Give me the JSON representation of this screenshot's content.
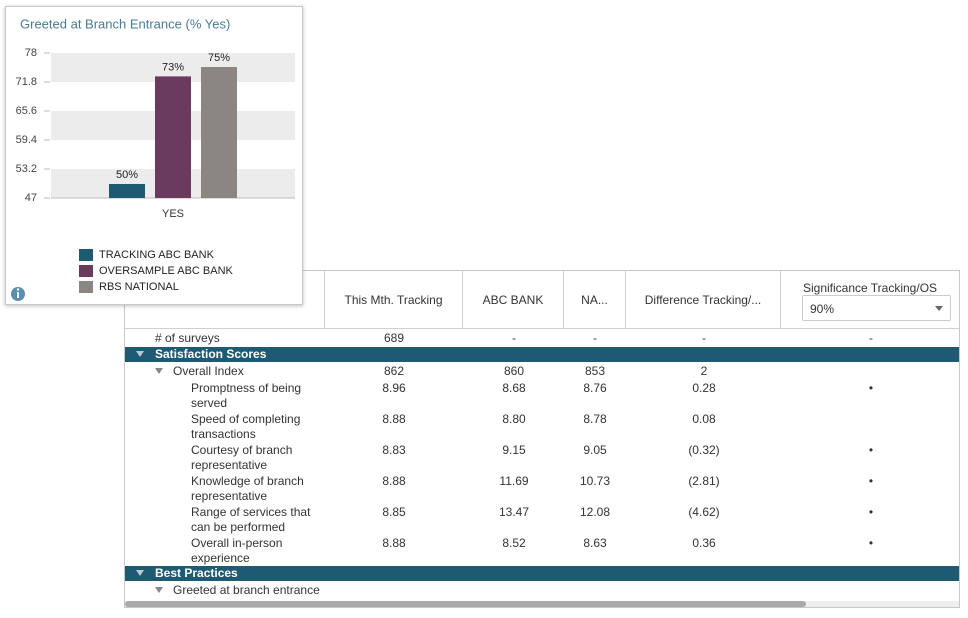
{
  "chart_data": {
    "type": "bar",
    "title": "Greeted at Branch Entrance (% Yes)",
    "categories": [
      "YES"
    ],
    "series": [
      {
        "name": "TRACKING ABC BANK",
        "color": "#1e5a72",
        "values": [
          50
        ],
        "value_labels": [
          "50%"
        ]
      },
      {
        "name": "OVERSAMPLE ABC BANK",
        "color": "#6a3a5f",
        "values": [
          73
        ],
        "value_labels": [
          "73%"
        ]
      },
      {
        "name": "RBS NATIONAL",
        "color": "#8b8681",
        "values": [
          75
        ],
        "value_labels": [
          "75%"
        ]
      }
    ],
    "ylim": [
      47,
      78
    ],
    "yticks": [
      47,
      53.2,
      59.4,
      65.6,
      71.8,
      78
    ],
    "grid": true,
    "legend": "bottom-left"
  },
  "table": {
    "header": [
      "This Mth. Tracking",
      "ABC BANK",
      "NA...",
      "Difference Tracking/...",
      "Significance Tracking/OS"
    ],
    "dropdown": "90%",
    "top_row": {
      "label": "# of surveys",
      "values": [
        "689",
        "-",
        "-",
        "-",
        "-"
      ]
    },
    "sections": [
      {
        "title": "Satisfaction Scores",
        "groups": [
          {
            "label": "Overall Index",
            "values": [
              "862",
              "860",
              "853",
              "2",
              null
            ],
            "items": [
              {
                "label": "Promptness of being served",
                "values": [
                  "8.96",
                  "8.68",
                  "8.76",
                  "0.28",
                  "•"
                ]
              },
              {
                "label": "Speed of completing transactions",
                "values": [
                  "8.88",
                  "8.80",
                  "8.78",
                  "0.08",
                  null
                ]
              },
              {
                "label": "Courtesy of branch representative",
                "values": [
                  "8.83",
                  "9.15",
                  "9.05",
                  "(0.32)",
                  "•"
                ]
              },
              {
                "label": "Knowledge of branch representative",
                "values": [
                  "8.88",
                  "11.69",
                  "10.73",
                  "(2.81)",
                  "•"
                ]
              },
              {
                "label": "Range of services that can be performed",
                "values": [
                  "8.85",
                  "13.47",
                  "12.08",
                  "(4.62)",
                  "•"
                ]
              },
              {
                "label": "Overall in-person experience",
                "values": [
                  "8.88",
                  "8.52",
                  "8.63",
                  "0.36",
                  "•"
                ]
              }
            ]
          }
        ]
      },
      {
        "title": "Best Practices",
        "groups": [
          {
            "label": "Greeted at branch entrance"
          }
        ]
      }
    ]
  }
}
